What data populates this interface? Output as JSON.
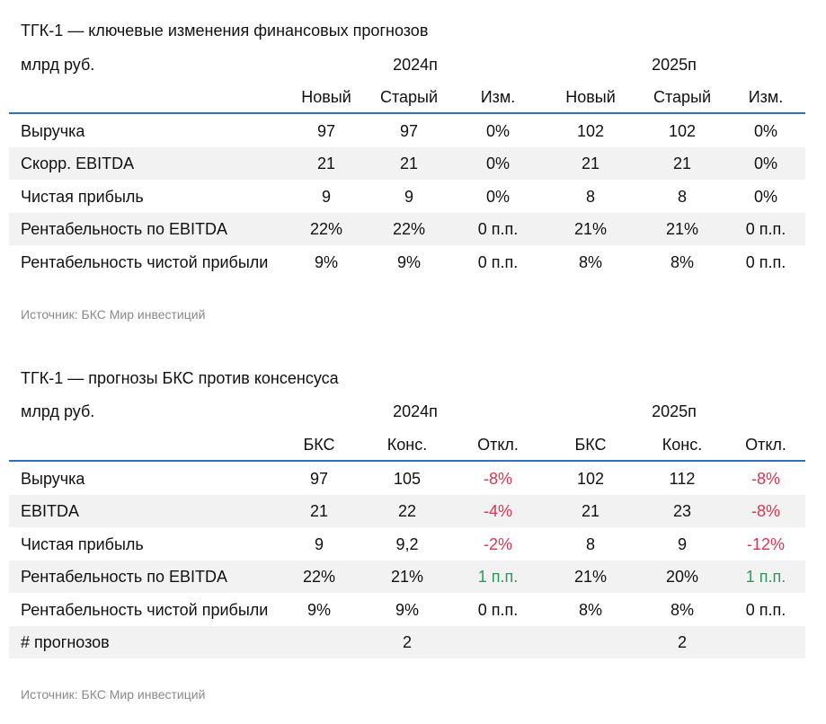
{
  "table1": {
    "title": "ТГК-1 — ключевые изменения финансовых прогнозов",
    "unit": "млрд руб.",
    "years": [
      "2024п",
      "2025п"
    ],
    "columns": [
      "Новый",
      "Старый",
      "Изм.",
      "Новый",
      "Старый",
      "Изм."
    ],
    "rows": [
      {
        "label": "Выручка",
        "cells": [
          "97",
          "97",
          "0%",
          "102",
          "102",
          "0%"
        ]
      },
      {
        "label": "Скорр. EBITDA",
        "cells": [
          "21",
          "21",
          "0%",
          "21",
          "21",
          "0%"
        ]
      },
      {
        "label": "Чистая прибыль",
        "cells": [
          "9",
          "9",
          "0%",
          "8",
          "8",
          "0%"
        ]
      },
      {
        "label": "Рентабельность по EBITDA",
        "cells": [
          "22%",
          "22%",
          "0 п.п.",
          "21%",
          "21%",
          "0 п.п."
        ]
      },
      {
        "label": "Рентабельность чистой прибыли",
        "cells": [
          "9%",
          "9%",
          "0 п.п.",
          "8%",
          "8%",
          "0 п.п."
        ]
      }
    ],
    "source": "Источник: БКС Мир инвестиций"
  },
  "table2": {
    "title": "ТГК-1 — прогнозы БКС против консенсуса",
    "unit": "млрд руб.",
    "years": [
      "2024п",
      "2025п"
    ],
    "columns": [
      "БКС",
      "Конс.",
      "Откл.",
      "БКС",
      "Конс.",
      "Откл."
    ],
    "rows": [
      {
        "label": "Выручка",
        "cells": [
          "97",
          "105",
          "-8%",
          "102",
          "112",
          "-8%"
        ]
      },
      {
        "label": "EBITDA",
        "cells": [
          "21",
          "22",
          "-4%",
          "21",
          "23",
          "-8%"
        ]
      },
      {
        "label": "Чистая прибыль",
        "cells": [
          "9",
          "9,2",
          "-2%",
          "8",
          "9",
          "-12%"
        ]
      },
      {
        "label": "Рентабельность по EBITDA",
        "cells": [
          "22%",
          "21%",
          "1 п.п.",
          "21%",
          "20%",
          "1 п.п."
        ]
      },
      {
        "label": "Рентабельность чистой прибыли",
        "cells": [
          "9%",
          "9%",
          "0 п.п.",
          "8%",
          "8%",
          "0 п.п."
        ]
      },
      {
        "label": "# прогнозов",
        "cells": [
          "",
          "2",
          "",
          "",
          "2",
          ""
        ]
      }
    ],
    "source": "Источник: БКС Мир инвестиций"
  },
  "colors": {
    "rule": "#2f6fbd",
    "negative": "#e0334f",
    "positive": "#2e9a5a",
    "shade": "#f2f2f2",
    "source": "#8a8a8a"
  }
}
